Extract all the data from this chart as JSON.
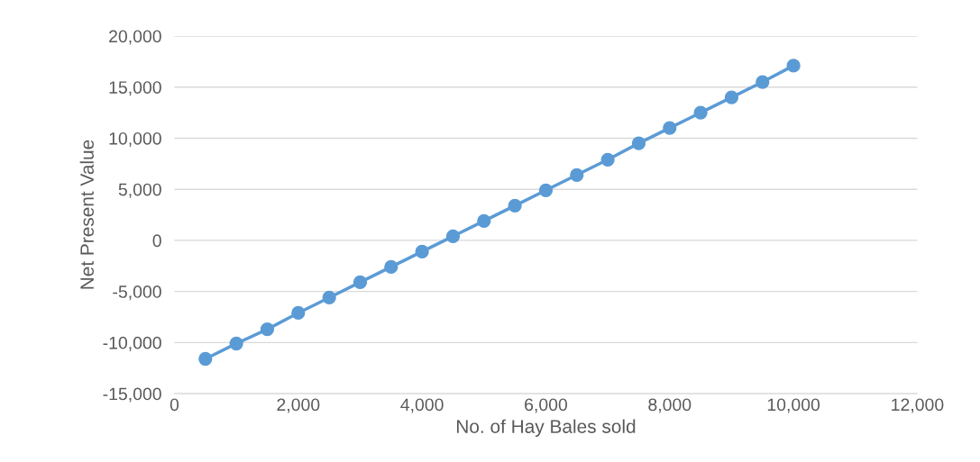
{
  "chart_data": {
    "type": "line",
    "xlabel": "No. of Hay Bales sold",
    "ylabel": "Net Present Value",
    "x": [
      500,
      1000,
      1500,
      2000,
      2500,
      3000,
      3500,
      4000,
      4500,
      5000,
      5500,
      6000,
      6500,
      7000,
      7500,
      8000,
      8500,
      9000,
      9500,
      10000
    ],
    "series": [
      {
        "color": "#5b9bd5",
        "values": [
          -11600,
          -10100,
          -8700,
          -7100,
          -5600,
          -4100,
          -2600,
          -1100,
          400,
          1900,
          3400,
          4900,
          6400,
          7900,
          9500,
          11000,
          12500,
          14000,
          15500,
          17100
        ]
      }
    ],
    "marker": "circle",
    "line_style": "solid",
    "grid": "y",
    "legend": false,
    "xlim": [
      0,
      12000
    ],
    "xticks": [
      0,
      {
        "value": 2000,
        "label": "2,000"
      },
      {
        "value": 4000,
        "label": "4,000"
      },
      {
        "value": 6000,
        "label": "6,000"
      },
      {
        "value": 8000,
        "label": "8,000"
      },
      {
        "value": 10000,
        "label": "10,000"
      },
      {
        "value": 12000,
        "label": "12,000"
      }
    ],
    "ylim": [
      -15000,
      20000
    ],
    "yticks": [
      {
        "value": -15000,
        "label": "-15,000"
      },
      {
        "value": -10000,
        "label": "-10,000"
      },
      {
        "value": -5000,
        "label": "-5,000"
      },
      0,
      {
        "value": 5000,
        "label": "5,000"
      },
      {
        "value": 10000,
        "label": "10,000"
      },
      {
        "value": 15000,
        "label": "15,000"
      },
      {
        "value": 20000,
        "label": "20,000"
      }
    ]
  }
}
